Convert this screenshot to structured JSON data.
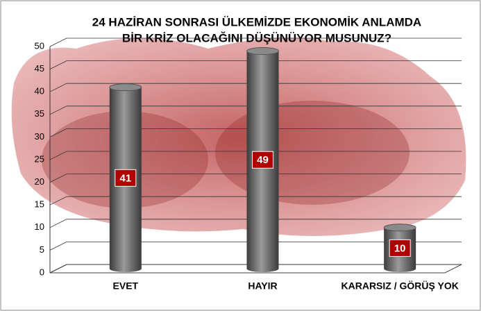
{
  "chart_data": {
    "type": "bar",
    "title": [
      "24 HAZİRAN SONRASI ÜLKEMİZDE EKONOMİK ANLAMDA",
      "BİR KRİZ  OLACAĞINI DÜŞÜNÜYOR MUSUNUZ?"
    ],
    "categories": [
      "EVET",
      "HAYIR",
      "KARARSIZ / GÖRÜŞ YOK"
    ],
    "values": [
      41,
      49,
      10
    ],
    "color": "#6e6e6e",
    "label_color": "#b00000",
    "ylim": [
      0,
      50
    ],
    "yticks": [
      0,
      5,
      10,
      15,
      20,
      25,
      30,
      35,
      40,
      45,
      50
    ],
    "grid": true
  }
}
